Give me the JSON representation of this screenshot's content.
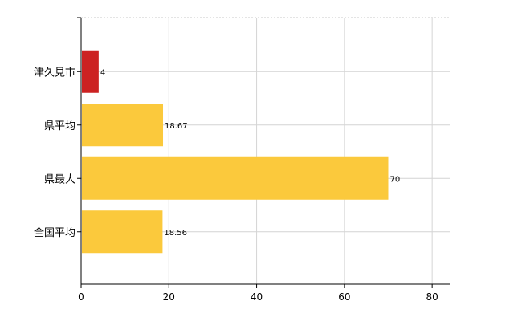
{
  "chart_data": {
    "type": "bar",
    "orientation": "horizontal",
    "categories": [
      "津久見市",
      "県平均",
      "県最大",
      "全国平均"
    ],
    "values": [
      4,
      18.67,
      70,
      18.56
    ],
    "data_labels": [
      "4",
      "18.67",
      "70",
      "18.56"
    ],
    "bar_colors": [
      "#cc2222",
      "#fbc93c",
      "#fbc93c",
      "#fbc93c"
    ],
    "x_ticks": [
      0,
      20,
      40,
      60,
      80
    ],
    "xlim": [
      0,
      84
    ],
    "grid": true,
    "legend": "none",
    "title": "",
    "xlabel": "",
    "ylabel": ""
  }
}
